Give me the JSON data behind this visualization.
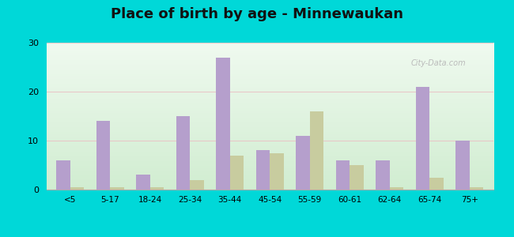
{
  "title": "Place of birth by age - Minnewaukan",
  "categories": [
    "<5",
    "5-17",
    "18-24",
    "25-34",
    "35-44",
    "45-54",
    "55-59",
    "60-61",
    "62-64",
    "65-74",
    "75+"
  ],
  "born_in_state": [
    6,
    14,
    3,
    15,
    27,
    8,
    11,
    6,
    6,
    21,
    10
  ],
  "born_other_state": [
    0.5,
    0.5,
    0.5,
    2,
    7,
    7.5,
    16,
    5,
    0.5,
    2.5,
    0.5
  ],
  "color_state": "#b59fcc",
  "color_other": "#c8cc9f",
  "background_outer": "#00d8d8",
  "bg_top_left": "#d4edd4",
  "bg_bottom_right": "#f0f8f0",
  "ylim": [
    0,
    30
  ],
  "yticks": [
    0,
    10,
    20,
    30
  ],
  "title_fontsize": 13,
  "bar_width": 0.35
}
